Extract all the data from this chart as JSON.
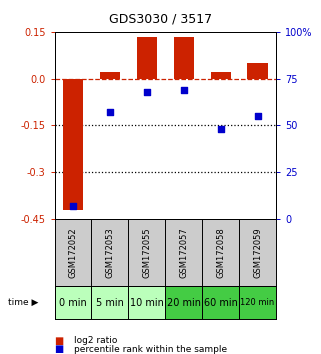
{
  "title": "GDS3030 / 3517",
  "categories": [
    "GSM172052",
    "GSM172053",
    "GSM172055",
    "GSM172057",
    "GSM172058",
    "GSM172059"
  ],
  "time_labels": [
    "0 min",
    "5 min",
    "10 min",
    "20 min",
    "60 min",
    "120 min"
  ],
  "log2_ratio": [
    -0.42,
    0.02,
    0.135,
    0.135,
    0.02,
    0.05
  ],
  "percentile_rank": [
    7,
    57,
    68,
    69,
    48,
    55
  ],
  "ylim_left": [
    -0.45,
    0.15
  ],
  "ylim_right": [
    0,
    100
  ],
  "yticks_left": [
    0.15,
    0.0,
    -0.15,
    -0.3,
    -0.45
  ],
  "yticks_right": [
    100,
    75,
    50,
    25,
    0
  ],
  "hlines_dotted": [
    -0.15,
    -0.3
  ],
  "bar_color": "#cc2200",
  "dot_color": "#0000cc",
  "dashed_line_color": "#cc2200",
  "bg_color": "#ffffff",
  "gsm_bg": "#cccccc",
  "time_bg_light": "#bbffbb",
  "time_bg_dark": "#44cc44",
  "time_dark_indices": [
    3,
    4,
    5
  ],
  "legend_labels": [
    "log2 ratio",
    "percentile rank within the sample"
  ],
  "title_fontsize": 9,
  "tick_fontsize": 7,
  "label_fontsize": 7
}
